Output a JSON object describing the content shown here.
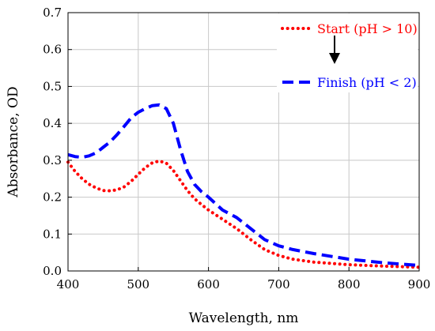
{
  "chart_data": {
    "type": "line",
    "title": "",
    "xlabel": "Wavelength, nm",
    "ylabel": "Absorbance, OD",
    "xlim": [
      400,
      900
    ],
    "ylim": [
      0.0,
      0.7
    ],
    "xticks": [
      "400",
      "500",
      "600",
      "700",
      "800",
      "900"
    ],
    "yticks": [
      "0.0",
      "0.1",
      "0.2",
      "0.3",
      "0.4",
      "0.5",
      "0.6",
      "0.7"
    ],
    "grid": true,
    "legend_position": "top-right",
    "annotation": "down-arrow",
    "series": [
      {
        "name": "Start (pH > 10)",
        "color": "#ff0000",
        "style": "dotted",
        "x": [
          400,
          410,
          420,
          430,
          440,
          450,
          460,
          470,
          480,
          490,
          500,
          510,
          520,
          530,
          540,
          550,
          560,
          570,
          580,
          590,
          600,
          620,
          640,
          660,
          680,
          700,
          720,
          750,
          800,
          850,
          900
        ],
        "y": [
          0.295,
          0.27,
          0.25,
          0.235,
          0.225,
          0.218,
          0.217,
          0.22,
          0.228,
          0.243,
          0.262,
          0.28,
          0.293,
          0.298,
          0.292,
          0.272,
          0.245,
          0.218,
          0.196,
          0.18,
          0.165,
          0.14,
          0.115,
          0.085,
          0.058,
          0.042,
          0.032,
          0.024,
          0.017,
          0.013,
          0.01
        ]
      },
      {
        "name": "Finish (pH < 2)",
        "color": "#0000ff",
        "style": "dashed",
        "x": [
          400,
          410,
          420,
          430,
          440,
          450,
          460,
          470,
          480,
          490,
          500,
          510,
          520,
          530,
          540,
          550,
          560,
          570,
          580,
          590,
          600,
          620,
          640,
          660,
          680,
          700,
          720,
          750,
          800,
          850,
          900
        ],
        "y": [
          0.315,
          0.31,
          0.308,
          0.312,
          0.32,
          0.335,
          0.35,
          0.37,
          0.392,
          0.415,
          0.43,
          0.44,
          0.448,
          0.45,
          0.44,
          0.4,
          0.33,
          0.27,
          0.235,
          0.215,
          0.2,
          0.165,
          0.145,
          0.115,
          0.085,
          0.068,
          0.058,
          0.047,
          0.032,
          0.022,
          0.015
        ]
      }
    ]
  }
}
